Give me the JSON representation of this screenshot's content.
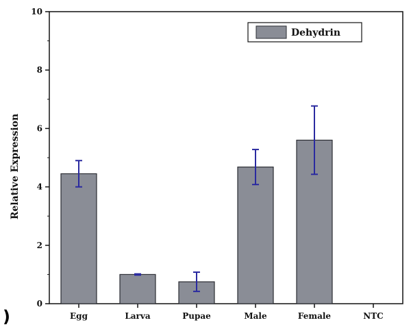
{
  "chart_data": {
    "type": "bar",
    "categories": [
      "Egg",
      "Larva",
      "Pupae",
      "Male",
      "Female",
      "NTC"
    ],
    "series": [
      {
        "name": "Dehydrin",
        "values": [
          4.45,
          1.0,
          0.75,
          4.68,
          5.6,
          0
        ],
        "error": [
          0.45,
          0.02,
          0.33,
          0.6,
          1.17,
          0
        ]
      }
    ],
    "title": "",
    "xlabel": "",
    "ylabel": "Relative Expression",
    "ylim": [
      0,
      10
    ],
    "yticks": [
      0,
      2,
      4,
      6,
      8,
      10
    ],
    "grid": false,
    "legend": "top-right",
    "colors": {
      "bar_fill": "#8a8d96",
      "bar_stroke": "#2b2d33",
      "error_bar": "#2a2aa0"
    }
  },
  "panel_label": ")"
}
